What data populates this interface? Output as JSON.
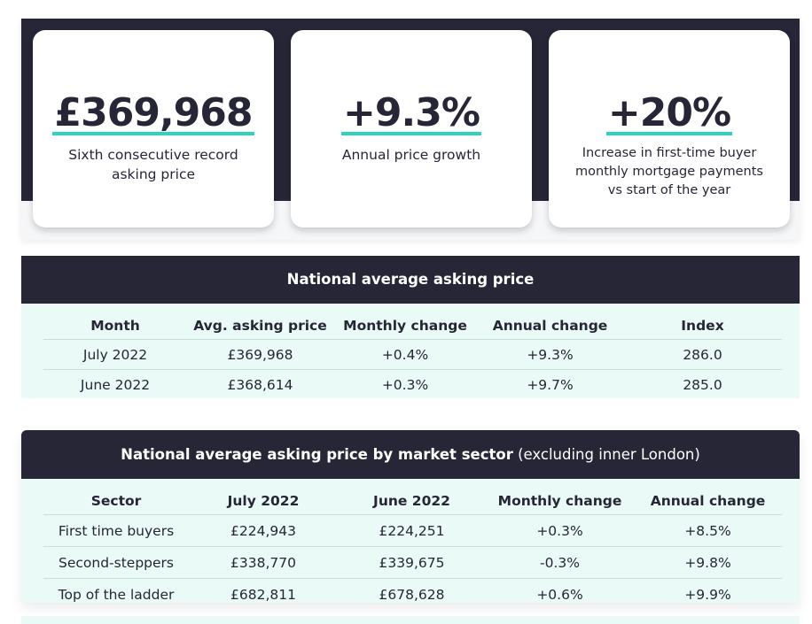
{
  "stats": [
    {
      "value": "£369,968",
      "label": "Sixth consecutive record asking price"
    },
    {
      "value": "+9.3%",
      "label": "Annual price growth"
    },
    {
      "value": "+20%",
      "label": "Increase in first-time buyer monthly mortgage payments vs start of the year"
    }
  ],
  "table1": {
    "title": "National average asking price",
    "headers": [
      "Month",
      "Avg. asking price",
      "Monthly change",
      "Annual change",
      "Index"
    ],
    "rows": [
      [
        "July 2022",
        "£369,968",
        "+0.4%",
        "+9.3%",
        "286.0"
      ],
      [
        "June 2022",
        "£368,614",
        "+0.3%",
        "+9.7%",
        "285.0"
      ]
    ]
  },
  "table2": {
    "title_bold": "National average asking price by market sector",
    "title_light": "(excluding inner London)",
    "headers": [
      "Sector",
      "July 2022",
      "June 2022",
      "Monthly change",
      "Annual change"
    ],
    "rows": [
      [
        "First time buyers",
        "£224,943",
        "£224,251",
        "+0.3%",
        "+8.5%"
      ],
      [
        "Second-steppers",
        "£338,770",
        "£339,675",
        "-0.3%",
        "+9.8%"
      ],
      [
        "Top of the ladder",
        "£682,811",
        "£678,628",
        "+0.6%",
        "+9.9%"
      ]
    ]
  },
  "colors": {
    "navy": "#262637",
    "accent": "#2ad4c0",
    "mint": "#eafaf6"
  }
}
